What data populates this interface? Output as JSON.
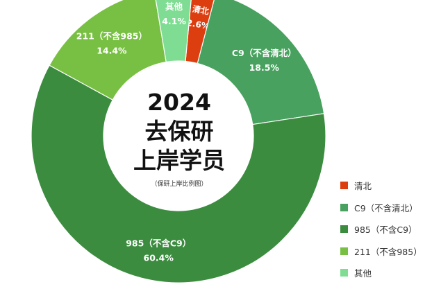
{
  "center": {
    "year": "2024",
    "line1": "去保研",
    "line2": "上岸学员",
    "subtitle": "（保研上岸比例图）"
  },
  "chart_data": {
    "type": "pie",
    "title": "",
    "categories": [
      "清北",
      "C9（不含清北）",
      "985（不含C9）",
      "211（不含985）",
      "其他"
    ],
    "values": [
      2.6,
      18.5,
      60.4,
      14.4,
      4.1
    ],
    "value_labels": [
      "2.6%",
      "18.5%",
      "60.4%",
      "14.4%",
      "4.1%"
    ],
    "colors": [
      "#dd3e10",
      "#48a15e",
      "#3c8c40",
      "#78c043",
      "#7fdd93"
    ],
    "donut": true,
    "legend_position": "right"
  }
}
